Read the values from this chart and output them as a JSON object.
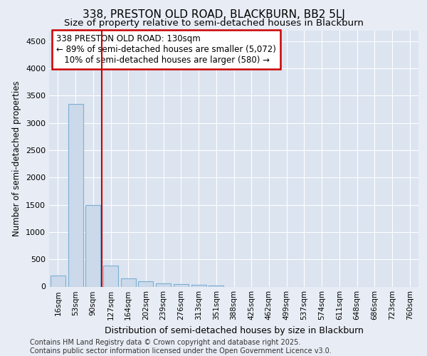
{
  "title1": "338, PRESTON OLD ROAD, BLACKBURN, BB2 5LJ",
  "title2": "Size of property relative to semi-detached houses in Blackburn",
  "xlabel": "Distribution of semi-detached houses by size in Blackburn",
  "ylabel": "Number of semi-detached properties",
  "categories": [
    "16sqm",
    "53sqm",
    "90sqm",
    "127sqm",
    "164sqm",
    "202sqm",
    "239sqm",
    "276sqm",
    "313sqm",
    "351sqm",
    "388sqm",
    "425sqm",
    "462sqm",
    "499sqm",
    "537sqm",
    "574sqm",
    "611sqm",
    "648sqm",
    "686sqm",
    "723sqm",
    "760sqm"
  ],
  "values": [
    200,
    3350,
    1500,
    390,
    155,
    100,
    65,
    50,
    30,
    20,
    0,
    0,
    0,
    0,
    0,
    0,
    0,
    0,
    0,
    0,
    0
  ],
  "bar_color": "#ccd9ea",
  "bar_edge_color": "#7bafd4",
  "vline_color": "#cc0000",
  "annotation_text": "338 PRESTON OLD ROAD: 130sqm\n← 89% of semi-detached houses are smaller (5,072)\n   10% of semi-detached houses are larger (580) →",
  "annotation_box_color": "#ffffff",
  "annotation_box_edge": "#cc0000",
  "ylim": [
    0,
    4700
  ],
  "yticks": [
    0,
    500,
    1000,
    1500,
    2000,
    2500,
    3000,
    3500,
    4000,
    4500
  ],
  "footer": "Contains HM Land Registry data © Crown copyright and database right 2025.\nContains public sector information licensed under the Open Government Licence v3.0.",
  "bg_color": "#e8edf5",
  "plot_bg_color": "#dce4f0",
  "grid_color": "#ffffff",
  "title1_fontsize": 11,
  "title2_fontsize": 9.5
}
